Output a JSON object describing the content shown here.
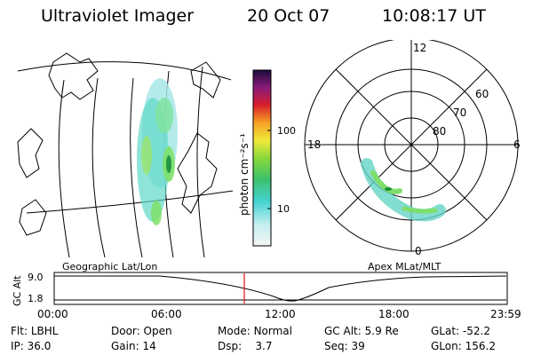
{
  "header": {
    "title": "Ultraviolet Imager",
    "date": "20 Oct 07",
    "time": "10:08:17 UT"
  },
  "colorbar": {
    "label": "photon cm⁻²s⁻¹",
    "ticks": [
      "100",
      "10"
    ]
  },
  "maps": {
    "left_caption": "Geographic Lat/Lon",
    "right_caption": "Apex MLat/MLT",
    "polar_mlt_labels": [
      "12",
      "18",
      "6",
      "0"
    ],
    "polar_lat_labels": [
      "60",
      "70",
      "80"
    ]
  },
  "timeline": {
    "axis_label": "GC Alt",
    "y_ticks": [
      "9.0",
      "1.8"
    ],
    "x_ticks": [
      "00:00",
      "06:00",
      "12:00",
      "18:00",
      "23:59"
    ],
    "current_time_marker": "10:08"
  },
  "info": {
    "row1": [
      {
        "k": "Flt:",
        "v": "LBHL"
      },
      {
        "k": "Door:",
        "v": "Open"
      },
      {
        "k": "Mode:",
        "v": "Normal"
      },
      {
        "k": "GC Alt:",
        "v": "5.9 Re"
      },
      {
        "k": "GLat:",
        "v": "-52.2"
      }
    ],
    "row2": [
      {
        "k": "IP:",
        "v": "36.0"
      },
      {
        "k": "Gain:",
        "v": "14"
      },
      {
        "k": "Dsp:",
        "v": "3.7"
      },
      {
        "k": "Seq:",
        "v": "39"
      },
      {
        "k": "GLon:",
        "v": "156.2"
      }
    ]
  },
  "colors": {
    "marker": "#e01010",
    "line": "#000000"
  }
}
